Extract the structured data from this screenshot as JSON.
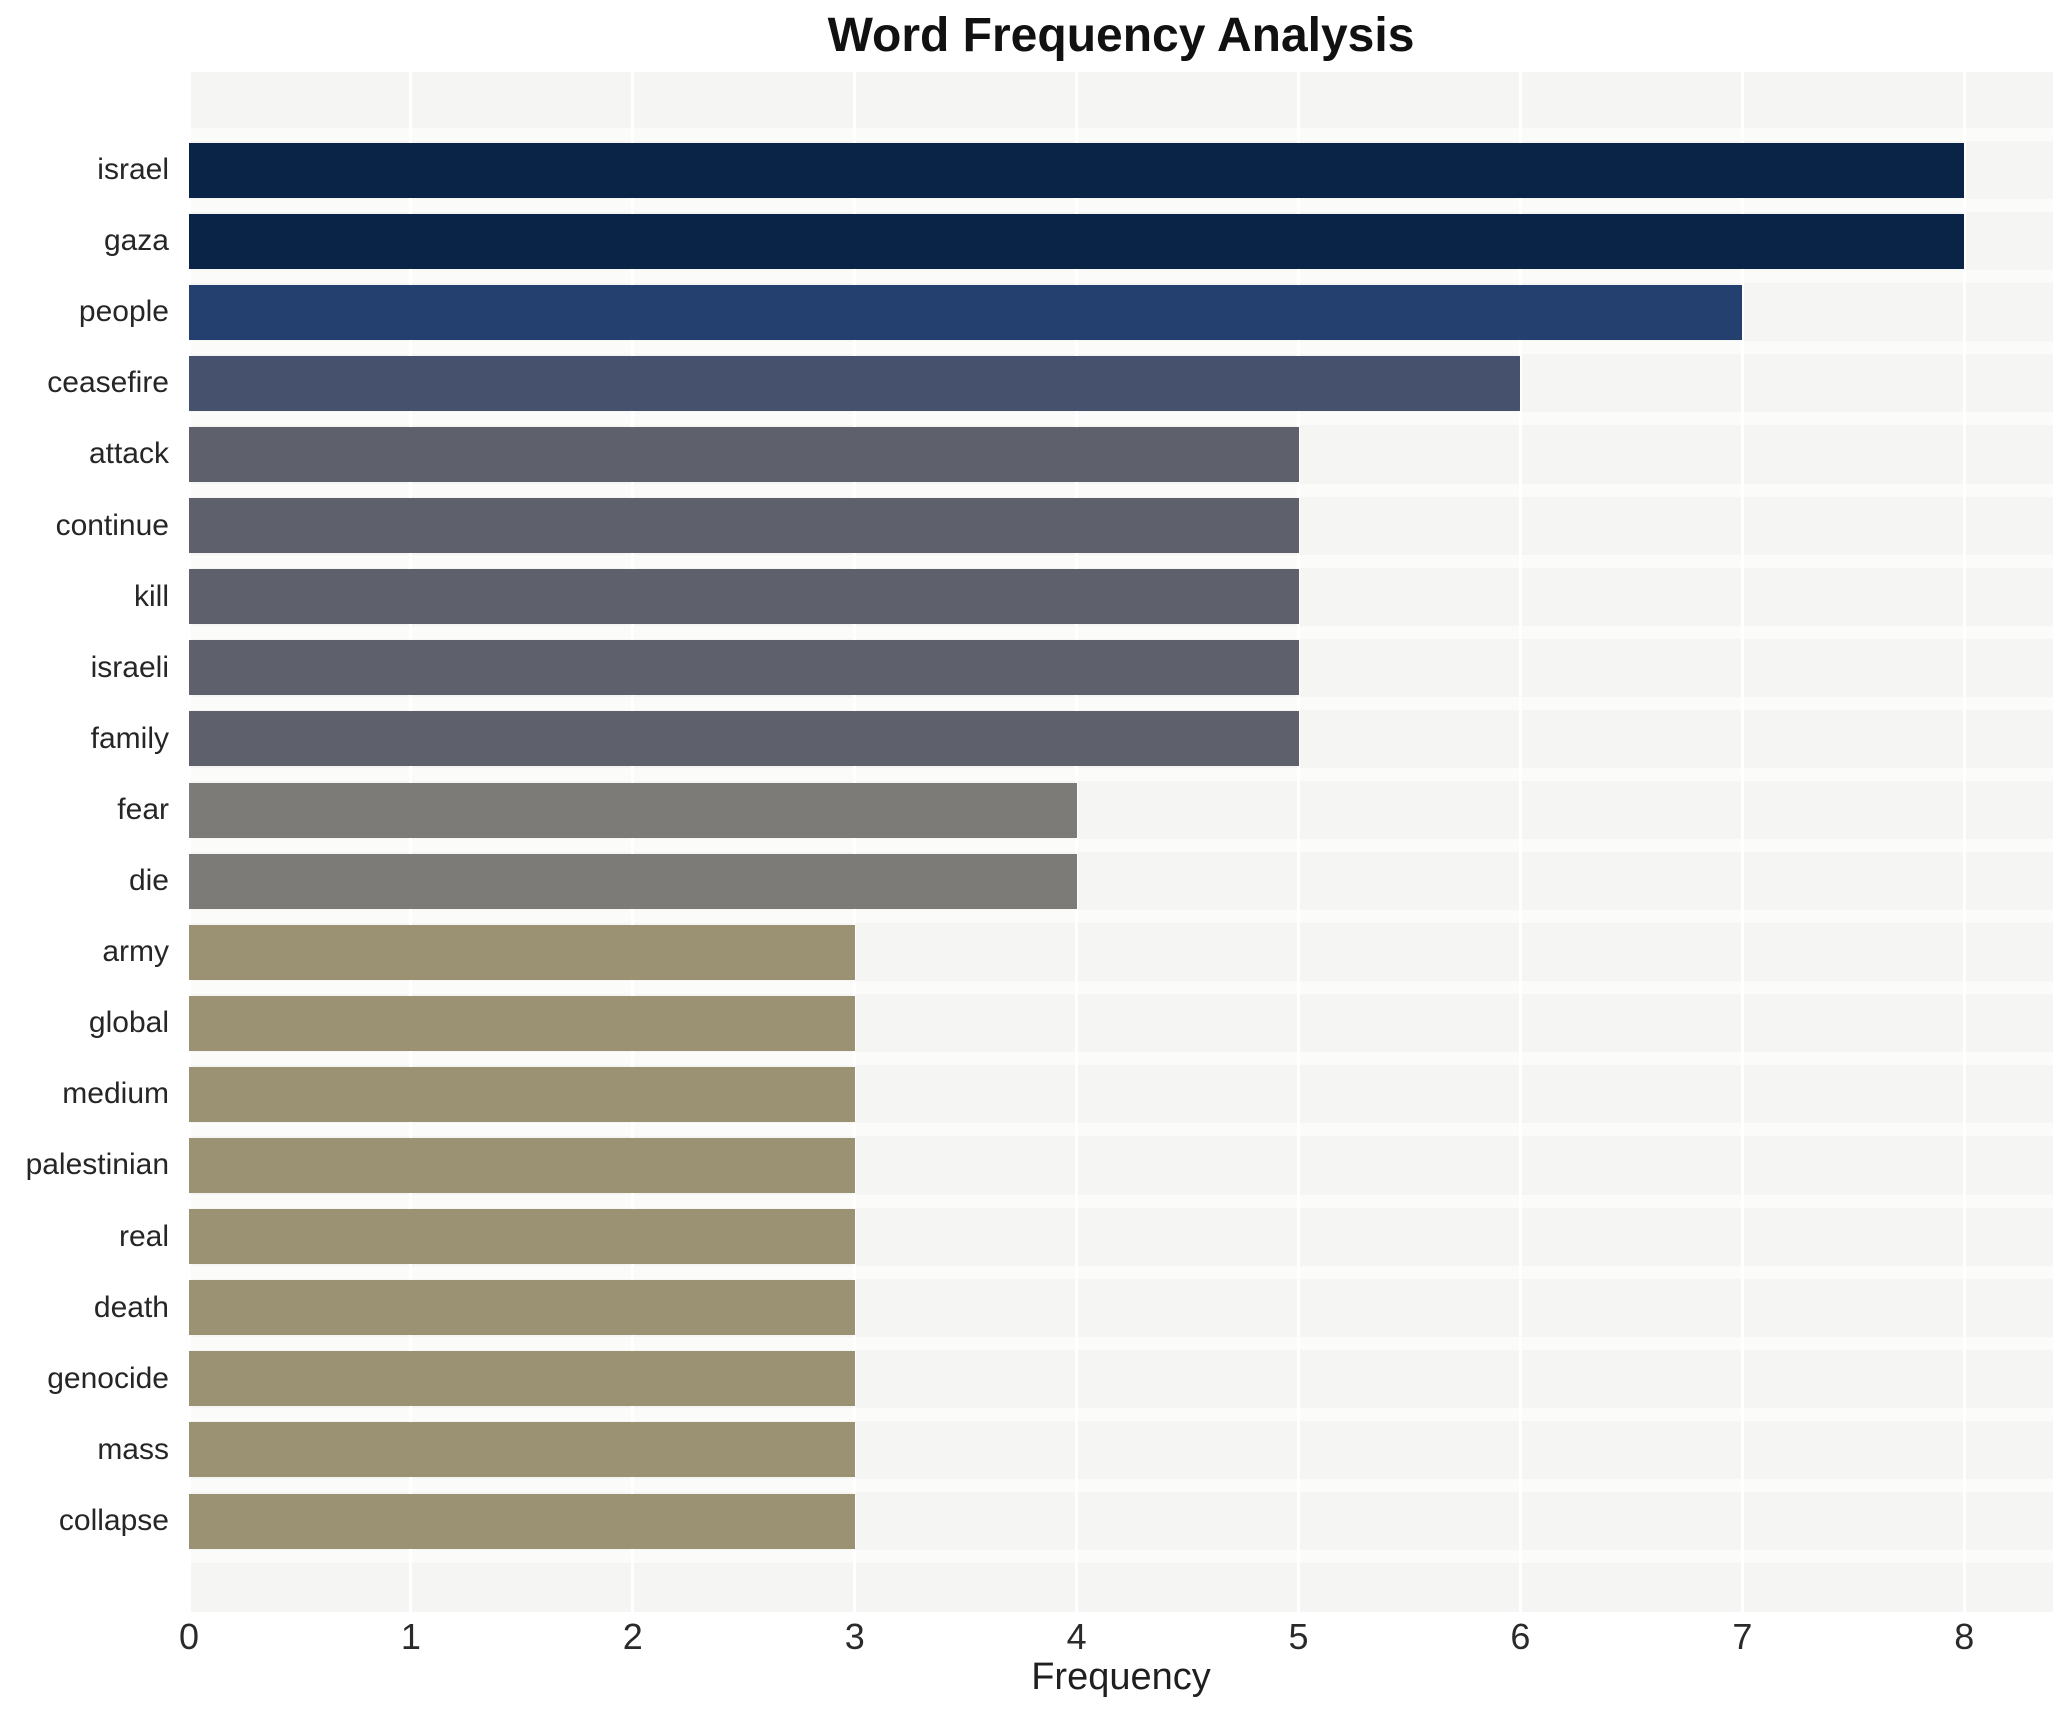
{
  "title": "Word Frequency Analysis",
  "chart_data": {
    "type": "bar",
    "orientation": "horizontal",
    "title": "Word Frequency Analysis",
    "xlabel": "Frequency",
    "ylabel": "",
    "categories": [
      "israel",
      "gaza",
      "people",
      "ceasefire",
      "attack",
      "continue",
      "kill",
      "israeli",
      "family",
      "fear",
      "die",
      "army",
      "global",
      "medium",
      "palestinian",
      "real",
      "death",
      "genocide",
      "mass",
      "collapse"
    ],
    "values": [
      8,
      8,
      7,
      6,
      5,
      5,
      5,
      5,
      5,
      4,
      4,
      3,
      3,
      3,
      3,
      3,
      3,
      3,
      3,
      3
    ],
    "bar_colors": [
      "#0a2447",
      "#0a2447",
      "#23406e",
      "#46516e",
      "#5e616c",
      "#5e616c",
      "#5e616c",
      "#5e616c",
      "#5e616c",
      "#7c7b77",
      "#7c7b77",
      "#9a9273",
      "#9a9273",
      "#9a9273",
      "#9a9273",
      "#9a9273",
      "#9a9273",
      "#9a9273",
      "#9a9273",
      "#9a9273"
    ],
    "color_by_frequency": {
      "8": "#0a2447",
      "7": "#23406e",
      "6": "#46516e",
      "5": "#5e616c",
      "4": "#7c7b77",
      "3": "#9a9273"
    },
    "xticks": [
      0,
      1,
      2,
      3,
      4,
      5,
      6,
      7,
      8
    ],
    "xlim": [
      0,
      8.4
    ],
    "grid": true,
    "legend_position": "none",
    "panel_background": "#f5f5f4",
    "band_stripe_color": "#fbfbfa",
    "gridline_color": "#ffffff"
  }
}
